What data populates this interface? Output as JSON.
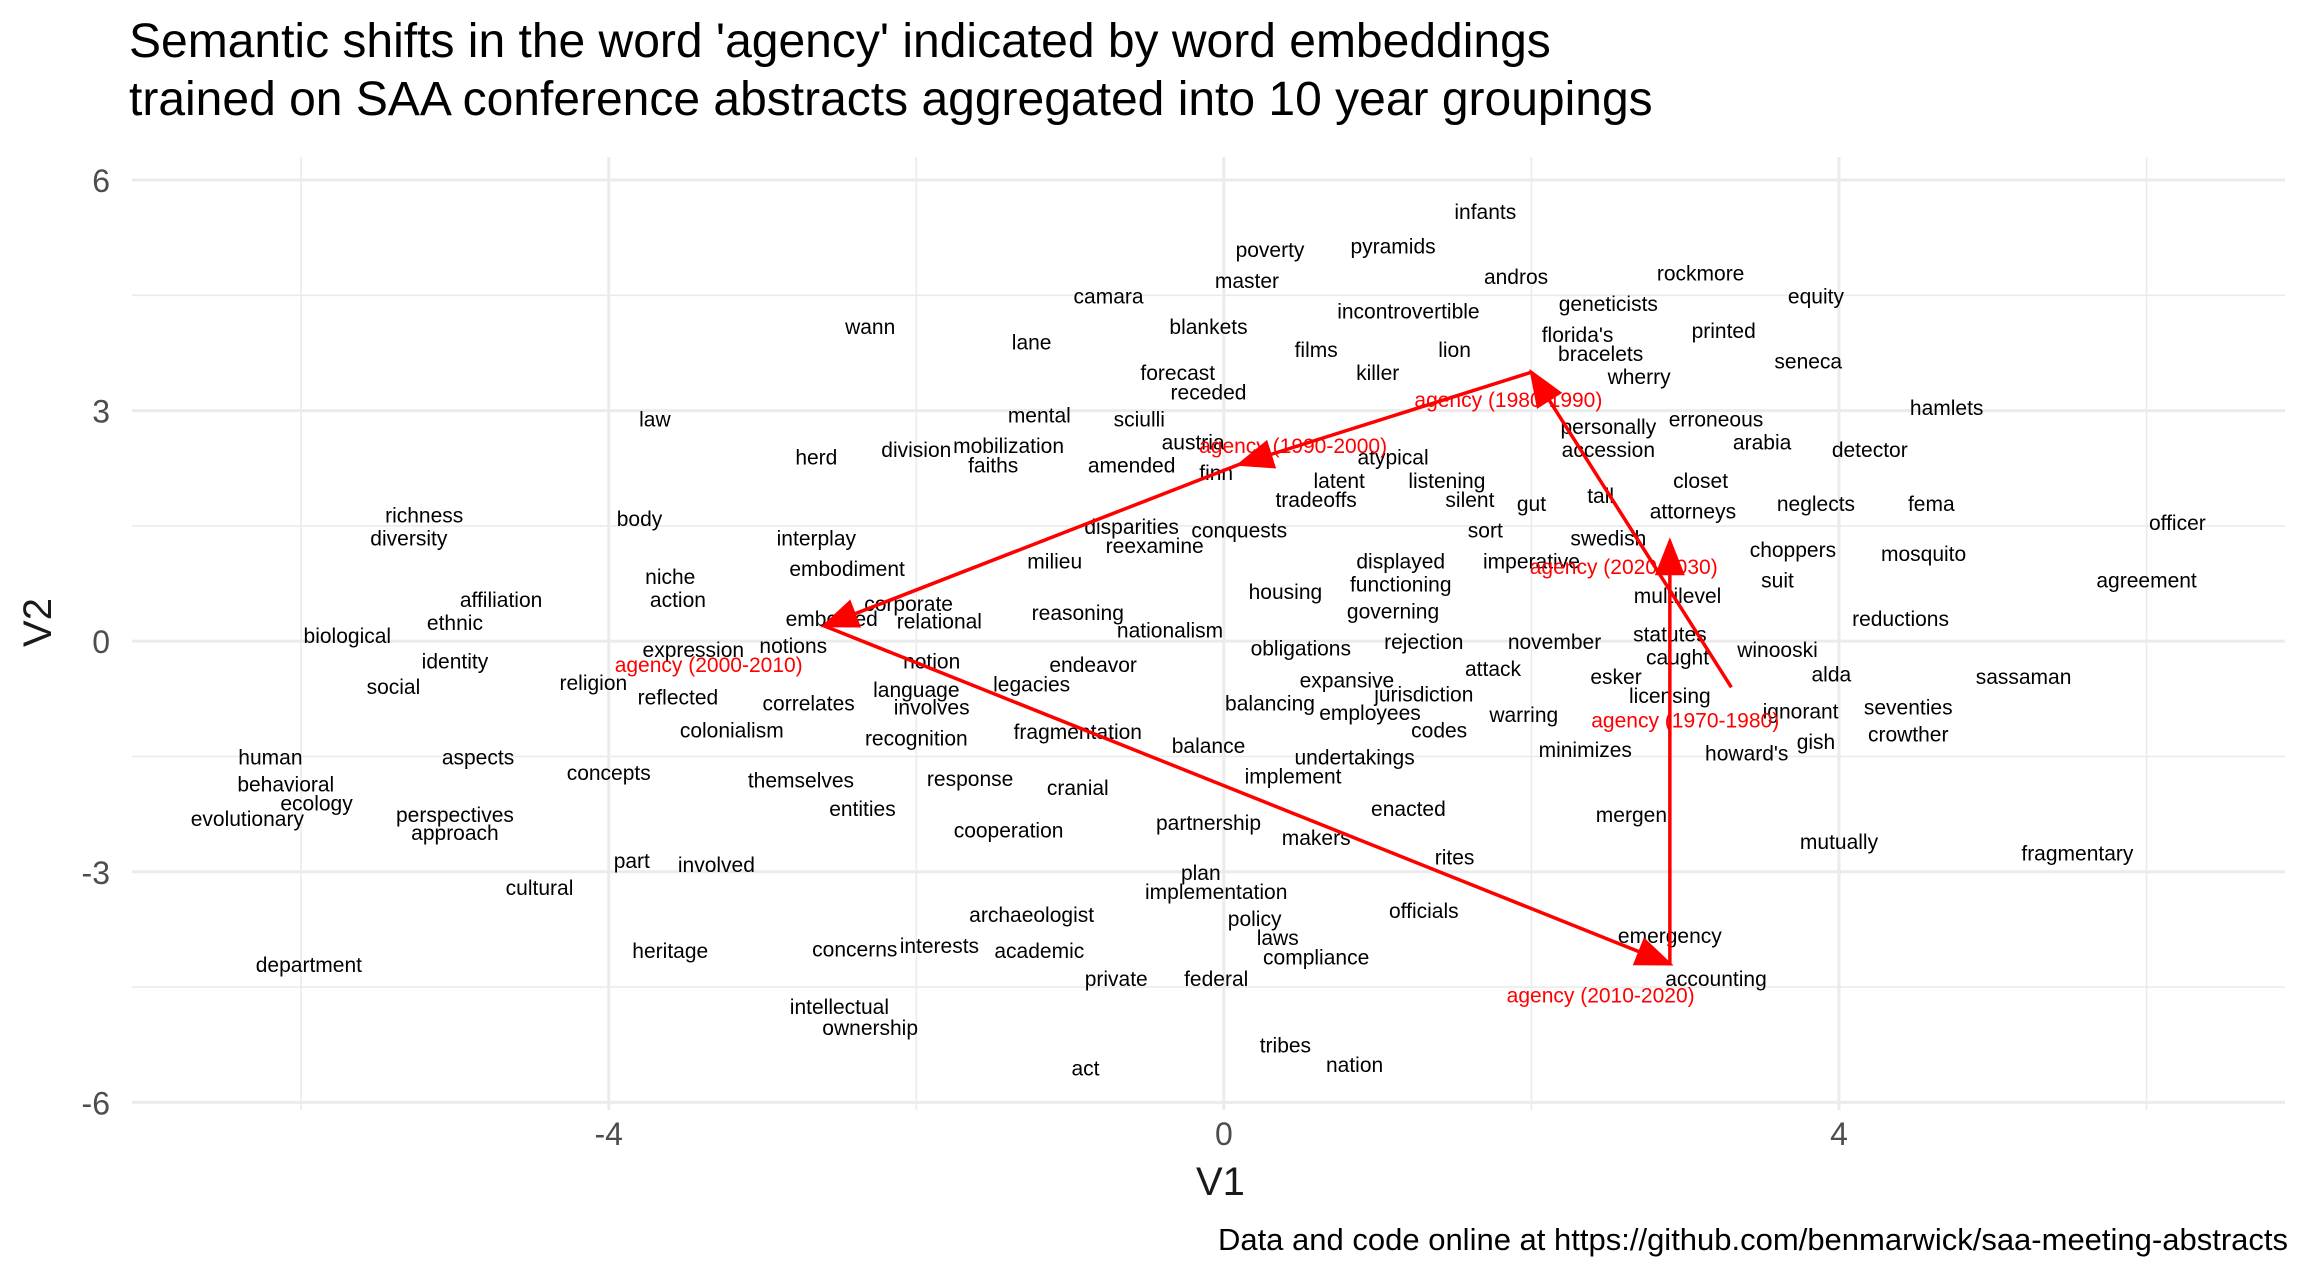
{
  "chart_data": {
    "type": "scatter",
    "title_lines": [
      "Semantic shifts in the word 'agency' indicated by word embeddings",
      "trained on SAA conference abstracts aggregated into 10 year groupings"
    ],
    "caption": "Data and code online at https://github.com/benmarwick/saa-meeting-abstracts",
    "xlabel": "V1",
    "ylabel": "V2",
    "xlim": [
      -7.1,
      6.9
    ],
    "ylim": [
      -6.1,
      6.3
    ],
    "x_ticks": [
      -4,
      0,
      4
    ],
    "y_ticks": [
      -6,
      -3,
      0,
      3,
      6
    ],
    "grid": true,
    "legend": "none",
    "word_color": "#000000",
    "agency_color": "#ff0000",
    "words": [
      {
        "label": "infants",
        "x": 1.7,
        "y": 5.6
      },
      {
        "label": "poverty",
        "x": 0.3,
        "y": 5.1
      },
      {
        "label": "pyramids",
        "x": 1.1,
        "y": 5.15
      },
      {
        "label": "rockmore",
        "x": 3.1,
        "y": 4.8
      },
      {
        "label": "andros",
        "x": 1.9,
        "y": 4.75
      },
      {
        "label": "master",
        "x": 0.15,
        "y": 4.7
      },
      {
        "label": "camara",
        "x": -0.75,
        "y": 4.5
      },
      {
        "label": "geneticists",
        "x": 2.5,
        "y": 4.4
      },
      {
        "label": "equity",
        "x": 3.85,
        "y": 4.5
      },
      {
        "label": "incontrovertible",
        "x": 1.2,
        "y": 4.3
      },
      {
        "label": "wann",
        "x": -2.3,
        "y": 4.1
      },
      {
        "label": "blankets",
        "x": -0.1,
        "y": 4.1
      },
      {
        "label": "florida's",
        "x": 2.3,
        "y": 4.0
      },
      {
        "label": "printed",
        "x": 3.25,
        "y": 4.05
      },
      {
        "label": "lane",
        "x": -1.25,
        "y": 3.9
      },
      {
        "label": "films",
        "x": 0.6,
        "y": 3.8
      },
      {
        "label": "lion",
        "x": 1.5,
        "y": 3.8
      },
      {
        "label": "bracelets",
        "x": 2.45,
        "y": 3.75
      },
      {
        "label": "seneca",
        "x": 3.8,
        "y": 3.65
      },
      {
        "label": "forecast",
        "x": -0.3,
        "y": 3.5
      },
      {
        "label": "killer",
        "x": 1.0,
        "y": 3.5
      },
      {
        "label": "wherry",
        "x": 2.7,
        "y": 3.45
      },
      {
        "label": "receded",
        "x": -0.1,
        "y": 3.25
      },
      {
        "label": "mental",
        "x": -1.2,
        "y": 2.95
      },
      {
        "label": "sciulli",
        "x": -0.55,
        "y": 2.9
      },
      {
        "label": "law",
        "x": -3.7,
        "y": 2.9
      },
      {
        "label": "erroneous",
        "x": 3.2,
        "y": 2.9
      },
      {
        "label": "hamlets",
        "x": 4.7,
        "y": 3.05
      },
      {
        "label": "personally",
        "x": 2.5,
        "y": 2.8
      },
      {
        "label": "mobilization",
        "x": -1.4,
        "y": 2.55
      },
      {
        "label": "austria",
        "x": -0.2,
        "y": 2.6
      },
      {
        "label": "arabia",
        "x": 3.5,
        "y": 2.6
      },
      {
        "label": "division",
        "x": -2.0,
        "y": 2.5
      },
      {
        "label": "accession",
        "x": 2.5,
        "y": 2.5
      },
      {
        "label": "detector",
        "x": 4.2,
        "y": 2.5
      },
      {
        "label": "herd",
        "x": -2.65,
        "y": 2.4
      },
      {
        "label": "atypical",
        "x": 1.1,
        "y": 2.4
      },
      {
        "label": "faiths",
        "x": -1.5,
        "y": 2.3
      },
      {
        "label": "amended",
        "x": -0.6,
        "y": 2.3
      },
      {
        "label": "finn",
        "x": -0.05,
        "y": 2.2
      },
      {
        "label": "listening",
        "x": 1.45,
        "y": 2.1
      },
      {
        "label": "latent",
        "x": 0.75,
        "y": 2.1
      },
      {
        "label": "closet",
        "x": 3.1,
        "y": 2.1
      },
      {
        "label": "tradeoffs",
        "x": 0.6,
        "y": 1.85
      },
      {
        "label": "silent",
        "x": 1.6,
        "y": 1.85
      },
      {
        "label": "tail",
        "x": 2.45,
        "y": 1.9
      },
      {
        "label": "gut",
        "x": 2.0,
        "y": 1.8
      },
      {
        "label": "neglects",
        "x": 3.85,
        "y": 1.8
      },
      {
        "label": "fema",
        "x": 4.6,
        "y": 1.8
      },
      {
        "label": "attorneys",
        "x": 3.05,
        "y": 1.7
      },
      {
        "label": "richness",
        "x": -5.2,
        "y": 1.65
      },
      {
        "label": "body",
        "x": -3.8,
        "y": 1.6
      },
      {
        "label": "officer",
        "x": 6.2,
        "y": 1.55
      },
      {
        "label": "disparities",
        "x": -0.6,
        "y": 1.5
      },
      {
        "label": "conquests",
        "x": 0.1,
        "y": 1.45
      },
      {
        "label": "sort",
        "x": 1.7,
        "y": 1.45
      },
      {
        "label": "diversity",
        "x": -5.3,
        "y": 1.35
      },
      {
        "label": "interplay",
        "x": -2.65,
        "y": 1.35
      },
      {
        "label": "swedish",
        "x": 2.5,
        "y": 1.35
      },
      {
        "label": "reexamine",
        "x": -0.45,
        "y": 1.25
      },
      {
        "label": "choppers",
        "x": 3.7,
        "y": 1.2
      },
      {
        "label": "mosquito",
        "x": 4.55,
        "y": 1.15
      },
      {
        "label": "milieu",
        "x": -1.1,
        "y": 1.05
      },
      {
        "label": "displayed",
        "x": 1.15,
        "y": 1.05
      },
      {
        "label": "imperative",
        "x": 2.0,
        "y": 1.05
      },
      {
        "label": "embodiment",
        "x": -2.45,
        "y": 0.95
      },
      {
        "label": "niche",
        "x": -3.6,
        "y": 0.85
      },
      {
        "label": "suit",
        "x": 3.6,
        "y": 0.8
      },
      {
        "label": "agreement",
        "x": 6.0,
        "y": 0.8
      },
      {
        "label": "functioning",
        "x": 1.15,
        "y": 0.75
      },
      {
        "label": "housing",
        "x": 0.4,
        "y": 0.65
      },
      {
        "label": "multilevel",
        "x": 2.95,
        "y": 0.6
      },
      {
        "label": "action",
        "x": -3.55,
        "y": 0.55
      },
      {
        "label": "affiliation",
        "x": -4.7,
        "y": 0.55
      },
      {
        "label": "corporate",
        "x": -2.05,
        "y": 0.5
      },
      {
        "label": "reasoning",
        "x": -0.95,
        "y": 0.38
      },
      {
        "label": "governing",
        "x": 1.1,
        "y": 0.4
      },
      {
        "label": "embodied",
        "x": -2.55,
        "y": 0.3
      },
      {
        "label": "relational",
        "x": -1.85,
        "y": 0.27
      },
      {
        "label": "ethnic",
        "x": -5.0,
        "y": 0.25
      },
      {
        "label": "reductions",
        "x": 4.4,
        "y": 0.3
      },
      {
        "label": "nationalism",
        "x": -0.35,
        "y": 0.15
      },
      {
        "label": "statutes",
        "x": 2.9,
        "y": 0.1
      },
      {
        "label": "biological",
        "x": -5.7,
        "y": 0.08
      },
      {
        "label": "rejection",
        "x": 1.3,
        "y": 0.0
      },
      {
        "label": "november",
        "x": 2.15,
        "y": 0.0
      },
      {
        "label": "notions",
        "x": -2.8,
        "y": -0.05
      },
      {
        "label": "obligations",
        "x": 0.5,
        "y": -0.08
      },
      {
        "label": "winooski",
        "x": 3.6,
        "y": -0.1
      },
      {
        "label": "expression",
        "x": -3.45,
        "y": -0.1
      },
      {
        "label": "caught",
        "x": 2.95,
        "y": -0.2
      },
      {
        "label": "notion",
        "x": -1.9,
        "y": -0.25
      },
      {
        "label": "identity",
        "x": -5.0,
        "y": -0.25
      },
      {
        "label": "endeavor",
        "x": -0.85,
        "y": -0.3
      },
      {
        "label": "attack",
        "x": 1.75,
        "y": -0.35
      },
      {
        "label": "alda",
        "x": 3.95,
        "y": -0.42
      },
      {
        "label": "sassaman",
        "x": 5.2,
        "y": -0.45
      },
      {
        "label": "esker",
        "x": 2.55,
        "y": -0.45
      },
      {
        "label": "expansive",
        "x": 0.8,
        "y": -0.5
      },
      {
        "label": "religion",
        "x": -4.1,
        "y": -0.53
      },
      {
        "label": "social",
        "x": -5.4,
        "y": -0.58
      },
      {
        "label": "legacies",
        "x": -1.25,
        "y": -0.55
      },
      {
        "label": "language",
        "x": -2.0,
        "y": -0.62
      },
      {
        "label": "jurisdiction",
        "x": 1.3,
        "y": -0.68
      },
      {
        "label": "licensing",
        "x": 2.9,
        "y": -0.7
      },
      {
        "label": "reflected",
        "x": -3.55,
        "y": -0.72
      },
      {
        "label": "correlates",
        "x": -2.7,
        "y": -0.8
      },
      {
        "label": "involves",
        "x": -1.9,
        "y": -0.85
      },
      {
        "label": "balancing",
        "x": 0.3,
        "y": -0.8
      },
      {
        "label": "seventies",
        "x": 4.45,
        "y": -0.85
      },
      {
        "label": "employees",
        "x": 0.95,
        "y": -0.92
      },
      {
        "label": "ignorant",
        "x": 3.75,
        "y": -0.9
      },
      {
        "label": "gish",
        "x": 3.85,
        "y": -1.3
      },
      {
        "label": "warring",
        "x": 1.95,
        "y": -0.95
      },
      {
        "label": "colonialism",
        "x": -3.2,
        "y": -1.15
      },
      {
        "label": "codes",
        "x": 1.4,
        "y": -1.15
      },
      {
        "label": "fragmentation",
        "x": -0.95,
        "y": -1.17
      },
      {
        "label": "crowther",
        "x": 4.45,
        "y": -1.2
      },
      {
        "label": "recognition",
        "x": -2.0,
        "y": -1.25
      },
      {
        "label": "balance",
        "x": -0.1,
        "y": -1.35
      },
      {
        "label": "minimizes",
        "x": 2.35,
        "y": -1.4
      },
      {
        "label": "howard's",
        "x": 3.4,
        "y": -1.45
      },
      {
        "label": "undertakings",
        "x": 0.85,
        "y": -1.5
      },
      {
        "label": "human",
        "x": -6.2,
        "y": -1.5
      },
      {
        "label": "aspects",
        "x": -4.85,
        "y": -1.5
      },
      {
        "label": "concepts",
        "x": -4.0,
        "y": -1.7
      },
      {
        "label": "implement",
        "x": 0.45,
        "y": -1.75
      },
      {
        "label": "themselves",
        "x": -2.75,
        "y": -1.8
      },
      {
        "label": "response",
        "x": -1.65,
        "y": -1.78
      },
      {
        "label": "cranial",
        "x": -0.95,
        "y": -1.9
      },
      {
        "label": "behavioral",
        "x": -6.1,
        "y": -1.85
      },
      {
        "label": "ecology",
        "x": -5.9,
        "y": -2.1
      },
      {
        "label": "entities",
        "x": -2.35,
        "y": -2.17
      },
      {
        "label": "enacted",
        "x": 1.2,
        "y": -2.17
      },
      {
        "label": "mergen",
        "x": 2.65,
        "y": -2.25
      },
      {
        "label": "perspectives",
        "x": -5.0,
        "y": -2.25
      },
      {
        "label": "evolutionary",
        "x": -6.35,
        "y": -2.3
      },
      {
        "label": "partnership",
        "x": -0.1,
        "y": -2.35
      },
      {
        "label": "cooperation",
        "x": -1.4,
        "y": -2.45
      },
      {
        "label": "approach",
        "x": -5.0,
        "y": -2.48
      },
      {
        "label": "makers",
        "x": 0.6,
        "y": -2.55
      },
      {
        "label": "mutually",
        "x": 4.0,
        "y": -2.6
      },
      {
        "label": "rites",
        "x": 1.5,
        "y": -2.8
      },
      {
        "label": "fragmentary",
        "x": 5.55,
        "y": -2.75
      },
      {
        "label": "part",
        "x": -3.85,
        "y": -2.85
      },
      {
        "label": "involved",
        "x": -3.3,
        "y": -2.9
      },
      {
        "label": "plan",
        "x": -0.15,
        "y": -3.0
      },
      {
        "label": "cultural",
        "x": -4.45,
        "y": -3.2
      },
      {
        "label": "implementation",
        "x": -0.05,
        "y": -3.25
      },
      {
        "label": "officials",
        "x": 1.3,
        "y": -3.5
      },
      {
        "label": "archaeologist",
        "x": -1.25,
        "y": -3.55
      },
      {
        "label": "policy",
        "x": 0.2,
        "y": -3.6
      },
      {
        "label": "emergency",
        "x": 2.9,
        "y": -3.82
      },
      {
        "label": "laws",
        "x": 0.35,
        "y": -3.85
      },
      {
        "label": "interests",
        "x": -1.85,
        "y": -3.95
      },
      {
        "label": "concerns",
        "x": -2.4,
        "y": -4.0
      },
      {
        "label": "academic",
        "x": -1.2,
        "y": -4.02
      },
      {
        "label": "heritage",
        "x": -3.6,
        "y": -4.02
      },
      {
        "label": "compliance",
        "x": 0.6,
        "y": -4.1
      },
      {
        "label": "department",
        "x": -5.95,
        "y": -4.2
      },
      {
        "label": "private",
        "x": -0.7,
        "y": -4.38
      },
      {
        "label": "federal",
        "x": -0.05,
        "y": -4.38
      },
      {
        "label": "accounting",
        "x": 3.2,
        "y": -4.38
      },
      {
        "label": "intellectual",
        "x": -2.5,
        "y": -4.75
      },
      {
        "label": "ownership",
        "x": -2.3,
        "y": -5.02
      },
      {
        "label": "tribes",
        "x": 0.4,
        "y": -5.25
      },
      {
        "label": "nation",
        "x": 0.85,
        "y": -5.5
      },
      {
        "label": "act",
        "x": -0.9,
        "y": -5.55
      }
    ],
    "agency_points": [
      {
        "label": "agency (1970-1980)",
        "x": 3.3,
        "y": -0.6
      },
      {
        "label": "agency (1980-1990)",
        "x": 2.0,
        "y": 3.5
      },
      {
        "label": "agency (1990-2000)",
        "x": 0.1,
        "y": 2.3
      },
      {
        "label": "agency (2000-2010)",
        "x": -2.6,
        "y": 0.2
      },
      {
        "label": "agency (2010-2020)",
        "x": 2.9,
        "y": -4.2
      },
      {
        "label": "agency (2020-2030)",
        "x": 2.9,
        "y": 1.3
      }
    ],
    "agency_label_positions": [
      {
        "label": "agency (1970-1980)",
        "x": 3.0,
        "y": -1.02
      },
      {
        "label": "agency (1980-1990)",
        "x": 1.85,
        "y": 3.15
      },
      {
        "label": "agency (1990-2000)",
        "x": 0.45,
        "y": 2.55
      },
      {
        "label": "agency (2000-2010)",
        "x": -3.35,
        "y": -0.3
      },
      {
        "label": "agency (2010-2020)",
        "x": 2.45,
        "y": -4.6
      },
      {
        "label": "agency (2020-2030)",
        "x": 2.6,
        "y": 0.98
      }
    ]
  }
}
